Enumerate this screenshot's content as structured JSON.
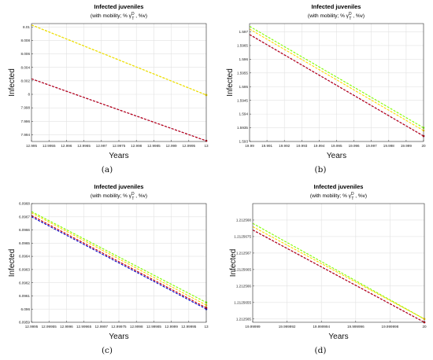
{
  "captions": [
    "(a)",
    "(b)",
    "(c)",
    "(d)"
  ],
  "chart_data": [
    {
      "type": "line",
      "title": "Infected juveniles",
      "subtitle": "(with mobility; % γ",
      "subtitle_sup": "D",
      "subtitle_sub": "T",
      "subtitle_end": " , %v)",
      "xlabel": "Years",
      "ylabel": "Infected",
      "xlim": [
        12.995,
        13
      ],
      "ylim": [
        7.993,
        8.0105
      ],
      "xticks": [
        "12.995",
        "12.9955",
        "12.996",
        "12.9965",
        "12.997",
        "12.9975",
        "12.998",
        "12.9985",
        "12.999",
        "12.9995",
        "13"
      ],
      "xtick_values": [
        12.995,
        12.9955,
        12.996,
        12.9965,
        12.997,
        12.9975,
        12.998,
        12.9985,
        12.999,
        12.9995,
        13
      ],
      "yticks": [
        "7.994",
        "7.996",
        "7.998",
        "8",
        "8.002",
        "8.004",
        "8.006",
        "8.008",
        "8.01"
      ],
      "ytick_values": [
        7.994,
        7.996,
        7.998,
        8,
        8.002,
        8.004,
        8.006,
        8.008,
        8.01
      ],
      "grid": true,
      "series": [
        {
          "color": "#7fff00",
          "x": [
            12.995,
            13
          ],
          "y": [
            8.0103,
            7.9999
          ]
        },
        {
          "color": "#ffd700",
          "x": [
            12.995,
            13
          ],
          "y": [
            8.0103,
            7.9999
          ]
        },
        {
          "color": "#0000cc",
          "x": [
            12.995,
            13
          ],
          "y": [
            8.0023,
            7.9931
          ]
        },
        {
          "color": "#cc0000",
          "x": [
            12.995,
            13
          ],
          "y": [
            8.0023,
            7.9931
          ]
        }
      ]
    },
    {
      "type": "line",
      "title": "Infected juveniles",
      "subtitle": "(with mobility; % γ",
      "subtitle_sup": "D",
      "subtitle_sub": "T",
      "subtitle_end": " , %v)",
      "xlabel": "Years",
      "ylabel": "Infected",
      "xlim": [
        19.99,
        20
      ],
      "ylim": [
        1.593,
        1.5973
      ],
      "xticks": [
        "19.99",
        "19.991",
        "19.992",
        "19.993",
        "19.994",
        "19.995",
        "19.996",
        "19.997",
        "19.998",
        "19.999",
        "20"
      ],
      "xtick_values": [
        19.99,
        19.991,
        19.992,
        19.993,
        19.994,
        19.995,
        19.996,
        19.997,
        19.998,
        19.999,
        20
      ],
      "yticks": [
        "1.593",
        "1.5935",
        "1.594",
        "1.5945",
        "1.595",
        "1.5955",
        "1.596",
        "1.5965",
        "1.597"
      ],
      "ytick_values": [
        1.593,
        1.5935,
        1.594,
        1.5945,
        1.595,
        1.5955,
        1.596,
        1.5965,
        1.597
      ],
      "grid": true,
      "series": [
        {
          "color": "#7fff00",
          "x": [
            19.99,
            20
          ],
          "y": [
            1.5972,
            1.5935
          ]
        },
        {
          "color": "#ffd700",
          "x": [
            19.99,
            20
          ],
          "y": [
            1.5971,
            1.5934
          ]
        },
        {
          "color": "#0000cc",
          "x": [
            19.99,
            20
          ],
          "y": [
            1.5969,
            1.5932
          ]
        },
        {
          "color": "#cc0000",
          "x": [
            19.99,
            20
          ],
          "y": [
            1.5969,
            1.5932
          ]
        }
      ]
    },
    {
      "type": "line",
      "title": "Infected juveniles",
      "subtitle": "(with mobility; % γ",
      "subtitle_sup": "D",
      "subtitle_sub": "T",
      "subtitle_end": " , %v)",
      "xlabel": "Years",
      "ylabel": "Infected",
      "xlim": [
        12.9995,
        13
      ],
      "ylim": [
        6.0959,
        6.0968
      ],
      "xticks": [
        "12.9995",
        "12.99955",
        "12.9996",
        "12.99965",
        "12.9997",
        "12.99975",
        "12.9998",
        "12.99985",
        "12.9999",
        "12.99995",
        "13"
      ],
      "xtick_values": [
        12.9995,
        12.99955,
        12.9996,
        12.99965,
        12.9997,
        12.99975,
        12.9998,
        12.99985,
        12.9999,
        12.99995,
        13
      ],
      "yticks": [
        "6.0959",
        "6.096",
        "6.0961",
        "6.0962",
        "6.0963",
        "6.0964",
        "6.0965",
        "6.0966",
        "6.0967",
        "6.0968"
      ],
      "ytick_values": [
        6.0959,
        6.096,
        6.0961,
        6.0962,
        6.0963,
        6.0964,
        6.0965,
        6.0966,
        6.0967,
        6.0968
      ],
      "grid": true,
      "series": [
        {
          "color": "#7fff00",
          "x": [
            12.9995,
            13
          ],
          "y": [
            6.09674,
            6.09605
          ]
        },
        {
          "color": "#ffd700",
          "x": [
            12.9995,
            13
          ],
          "y": [
            6.09673,
            6.09603
          ]
        },
        {
          "color": "#0000cc",
          "x": [
            12.9995,
            13
          ],
          "y": [
            6.0967,
            6.096
          ]
        },
        {
          "color": "#cc0000",
          "x": [
            12.9995,
            13
          ],
          "y": [
            6.09671,
            6.09601
          ]
        }
      ]
    },
    {
      "type": "line",
      "title": "Infected juveniles",
      "subtitle": "(with mobility; % γ",
      "subtitle_sup": "D",
      "subtitle_sub": "T",
      "subtitle_end": " , %v)",
      "xlabel": "Years",
      "ylabel": "Infected",
      "xlim": [
        19.99999,
        20
      ],
      "ylim": [
        1.2125649,
        1.2125685
      ],
      "xticks": [
        "19.99999",
        "19.999992",
        "19.999994",
        "19.999996",
        "19.999998",
        "20"
      ],
      "xtick_values": [
        19.99999,
        19.999992,
        19.999994,
        19.999996,
        19.999998,
        20
      ],
      "yticks": [
        "1.212565",
        "1.2125655",
        "1.212566",
        "1.2125665",
        "1.212567",
        "1.2125675",
        "1.212568"
      ],
      "ytick_values": [
        1.212565,
        1.2125655,
        1.212566,
        1.2125665,
        1.212567,
        1.2125675,
        1.212568
      ],
      "grid": true,
      "series": [
        {
          "color": "#7fff00",
          "x": [
            19.99999,
            20
          ],
          "y": [
            1.2125679,
            1.212565
          ]
        },
        {
          "color": "#ffd700",
          "x": [
            19.99999,
            20
          ],
          "y": [
            1.2125678,
            1.212565
          ]
        },
        {
          "color": "#0000cc",
          "x": [
            19.99999,
            20
          ],
          "y": [
            1.2125677,
            1.2125649
          ]
        },
        {
          "color": "#cc0000",
          "x": [
            19.99999,
            20
          ],
          "y": [
            1.2125677,
            1.2125649
          ]
        }
      ]
    }
  ]
}
